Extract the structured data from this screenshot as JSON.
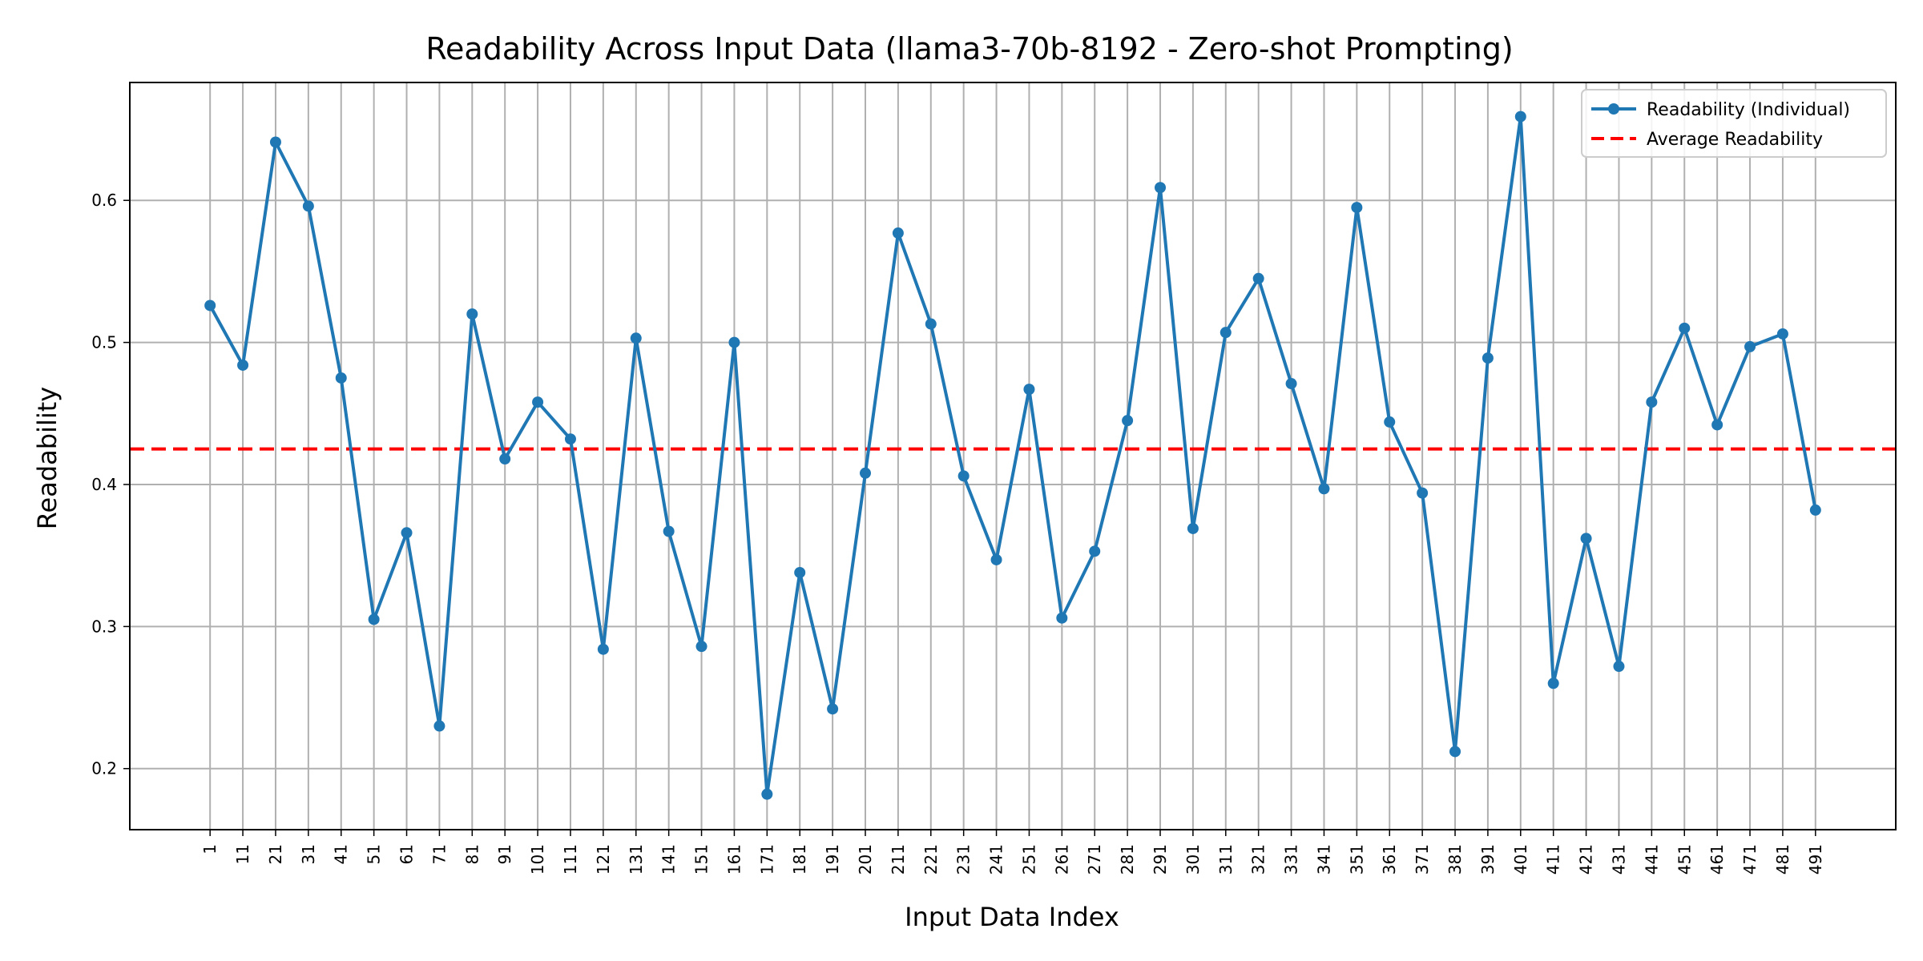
{
  "chart_data": {
    "type": "line",
    "title": "Readability Across Input Data (llama3-70b-8192 - Zero-shot Prompting)",
    "xlabel": "Input Data Index",
    "ylabel": "Readability",
    "ylim": [
      0.157,
      0.683
    ],
    "y_ticks": [
      0.2,
      0.3,
      0.4,
      0.5,
      0.6
    ],
    "y_tick_labels": [
      "0.2",
      "0.3",
      "0.4",
      "0.5",
      "0.6"
    ],
    "x": [
      1,
      11,
      21,
      31,
      41,
      51,
      61,
      71,
      81,
      91,
      101,
      111,
      121,
      131,
      141,
      151,
      161,
      171,
      181,
      191,
      201,
      211,
      221,
      231,
      241,
      251,
      261,
      271,
      281,
      291,
      301,
      311,
      321,
      331,
      341,
      351,
      361,
      371,
      381,
      391,
      401,
      411,
      421,
      431,
      441,
      451,
      461,
      471,
      481,
      491
    ],
    "x_tick_labels": [
      "1",
      "11",
      "21",
      "31",
      "41",
      "51",
      "61",
      "71",
      "81",
      "91",
      "101",
      "111",
      "121",
      "131",
      "141",
      "151",
      "161",
      "171",
      "181",
      "191",
      "201",
      "211",
      "221",
      "231",
      "241",
      "251",
      "261",
      "271",
      "281",
      "291",
      "301",
      "311",
      "321",
      "331",
      "341",
      "351",
      "361",
      "371",
      "381",
      "391",
      "401",
      "411",
      "421",
      "431",
      "441",
      "451",
      "461",
      "471",
      "481",
      "491"
    ],
    "grid": true,
    "legend_position": "top-right",
    "series": [
      {
        "name": "Readability (Individual)",
        "style": "line-with-markers",
        "color": "#1f77b4",
        "values": [
          0.526,
          0.484,
          0.641,
          0.596,
          0.475,
          0.305,
          0.366,
          0.23,
          0.52,
          0.418,
          0.458,
          0.432,
          0.284,
          0.503,
          0.367,
          0.286,
          0.5,
          0.182,
          0.338,
          0.242,
          0.408,
          0.577,
          0.513,
          0.406,
          0.347,
          0.467,
          0.306,
          0.353,
          0.445,
          0.609,
          0.369,
          0.507,
          0.545,
          0.471,
          0.397,
          0.595,
          0.444,
          0.394,
          0.212,
          0.489,
          0.659,
          0.26,
          0.362,
          0.272,
          0.458,
          0.51,
          0.442,
          0.497,
          0.506,
          0.382
        ]
      },
      {
        "name": "Average Readability",
        "style": "dashed-horizontal",
        "color": "#ff0000",
        "value": 0.425
      }
    ]
  }
}
